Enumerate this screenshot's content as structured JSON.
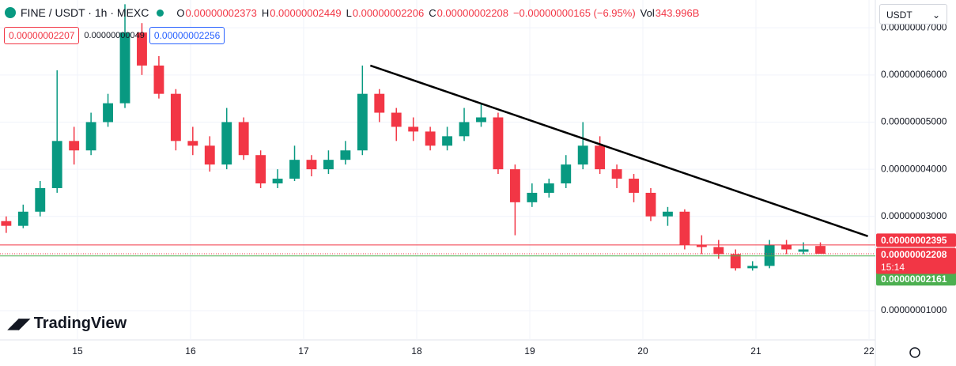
{
  "header": {
    "symbol": "FINE / USDT · 1h · MEXC",
    "o_key": "O",
    "o": "0.00000002373",
    "h_key": "H",
    "h": "0.00000002449",
    "l_key": "L",
    "l": "0.00000002206",
    "c_key": "C",
    "c": "0.00000002208",
    "change": "−0.00000000165 (−6.95%)",
    "vol_key": "Vol",
    "vol": "343.996B",
    "bid": "0.00000002207",
    "spread": "0.00000000049",
    "ask": "0.00000002256",
    "currency": "USDT",
    "brand": "TradingView"
  },
  "chart_data": {
    "type": "candlestick",
    "up_color": "#089981",
    "down_color": "#f23645",
    "x": [
      14.37,
      14.52,
      14.67,
      14.82,
      14.97,
      15.12,
      15.27,
      15.42,
      15.57,
      15.72,
      15.87,
      16.02,
      16.17,
      16.32,
      16.47,
      16.62,
      16.77,
      16.92,
      17.07,
      17.22,
      17.37,
      17.52,
      17.67,
      17.82,
      17.97,
      18.12,
      18.27,
      18.42,
      18.57,
      18.72,
      18.87,
      19.02,
      19.17,
      19.32,
      19.47,
      19.62,
      19.77,
      19.92,
      20.07,
      20.22,
      20.37,
      20.52,
      20.67,
      20.82,
      20.97,
      21.12,
      21.27,
      21.42,
      21.57
    ],
    "open": [
      2.9e-08,
      2.8e-08,
      3.1e-08,
      3.6e-08,
      4.6e-08,
      4.4e-08,
      5e-08,
      5.4e-08,
      6.9e-08,
      6.2e-08,
      5.6e-08,
      4.6e-08,
      4.5e-08,
      4.1e-08,
      5e-08,
      4.3e-08,
      3.7e-08,
      3.8e-08,
      4.2e-08,
      4e-08,
      4.2e-08,
      4.4e-08,
      5.6e-08,
      5.2e-08,
      4.9e-08,
      4.8e-08,
      4.5e-08,
      4.7e-08,
      5e-08,
      5.1e-08,
      4e-08,
      3.3e-08,
      3.5e-08,
      3.7e-08,
      4.1e-08,
      4.5e-08,
      4e-08,
      3.8e-08,
      3.5e-08,
      3e-08,
      3.1e-08,
      2.4e-08,
      2.35e-08,
      2.2e-08,
      1.9e-08,
      1.95e-08,
      2.4e-08,
      2.25e-08,
      2.373e-08
    ],
    "high": [
      3e-08,
      3.25e-08,
      3.75e-08,
      6.1e-08,
      4.9e-08,
      5.2e-08,
      5.6e-08,
      7.5e-08,
      7.1e-08,
      6.4e-08,
      5.7e-08,
      4.9e-08,
      4.7e-08,
      5.3e-08,
      5.1e-08,
      4.4e-08,
      4e-08,
      4.5e-08,
      4.3e-08,
      4.4e-08,
      4.6e-08,
      6.2e-08,
      5.7e-08,
      5.3e-08,
      5.1e-08,
      4.9e-08,
      4.9e-08,
      5.3e-08,
      5.4e-08,
      5.2e-08,
      4.1e-08,
      3.7e-08,
      3.8e-08,
      4.3e-08,
      5e-08,
      4.7e-08,
      4.1e-08,
      3.9e-08,
      3.6e-08,
      3.2e-08,
      3.15e-08,
      2.6e-08,
      2.5e-08,
      2.3e-08,
      2.05e-08,
      2.5e-08,
      2.5e-08,
      2.45e-08,
      2.449e-08
    ],
    "low": [
      2.65e-08,
      2.75e-08,
      3e-08,
      3.5e-08,
      4.1e-08,
      4.3e-08,
      4.9e-08,
      5.3e-08,
      6e-08,
      5.5e-08,
      4.4e-08,
      4.3e-08,
      3.95e-08,
      4e-08,
      4.2e-08,
      3.6e-08,
      3.6e-08,
      3.75e-08,
      3.85e-08,
      3.9e-08,
      4.1e-08,
      4.3e-08,
      5e-08,
      4.6e-08,
      4.6e-08,
      4.4e-08,
      4.4e-08,
      4.6e-08,
      4.9e-08,
      3.9e-08,
      2.6e-08,
      3.2e-08,
      3.4e-08,
      3.6e-08,
      4e-08,
      3.9e-08,
      3.6e-08,
      3.3e-08,
      2.9e-08,
      2.8e-08,
      2.3e-08,
      2.2e-08,
      2.1e-08,
      1.85e-08,
      1.85e-08,
      1.9e-08,
      2.2e-08,
      2.2e-08,
      2.206e-08
    ],
    "close": [
      2.8e-08,
      3.1e-08,
      3.6e-08,
      4.6e-08,
      4.4e-08,
      5e-08,
      5.4e-08,
      6.9e-08,
      6.2e-08,
      5.6e-08,
      4.6e-08,
      4.5e-08,
      4.1e-08,
      5e-08,
      4.3e-08,
      3.7e-08,
      3.8e-08,
      4.2e-08,
      4e-08,
      4.2e-08,
      4.4e-08,
      5.6e-08,
      5.2e-08,
      4.9e-08,
      4.8e-08,
      4.5e-08,
      4.7e-08,
      5e-08,
      5.1e-08,
      4e-08,
      3.3e-08,
      3.5e-08,
      3.7e-08,
      4.1e-08,
      4.5e-08,
      4e-08,
      3.8e-08,
      3.5e-08,
      3e-08,
      3.1e-08,
      2.4e-08,
      2.35e-08,
      2.2e-08,
      1.9e-08,
      1.95e-08,
      2.4e-08,
      2.3e-08,
      2.3e-08,
      2.208e-08
    ],
    "xlim": [
      14.315,
      22.056
    ],
    "xticks": [
      15,
      16,
      17,
      18,
      19,
      20,
      21,
      22
    ],
    "ylim": [
      3.8e-09,
      7.59e-08
    ],
    "yticks": [
      {
        "value": 1e-08,
        "label": "0.00000001000"
      },
      {
        "value": 3e-08,
        "label": "0.00000003000"
      },
      {
        "value": 4e-08,
        "label": "0.00000004000"
      },
      {
        "value": 5e-08,
        "label": "0.00000005000"
      },
      {
        "value": 6e-08,
        "label": "0.00000006000"
      },
      {
        "value": 7e-08,
        "label": "0.00000007000"
      }
    ],
    "grid": true,
    "trendline": {
      "x": [
        17.59,
        21.99
      ],
      "y": [
        6.2e-08,
        2.58e-08
      ],
      "color": "#000000"
    },
    "price_lines": [
      {
        "value": 2.395e-08,
        "label": "0.00000002395",
        "color": "#f23645"
      },
      {
        "value": 2.161e-08,
        "label": "0.00000002161",
        "color": "#4caf50"
      }
    ],
    "last_price": {
      "value": 2.208e-08,
      "label": "0.00000002208",
      "countdown": "15:14",
      "color": "#f23645"
    }
  }
}
